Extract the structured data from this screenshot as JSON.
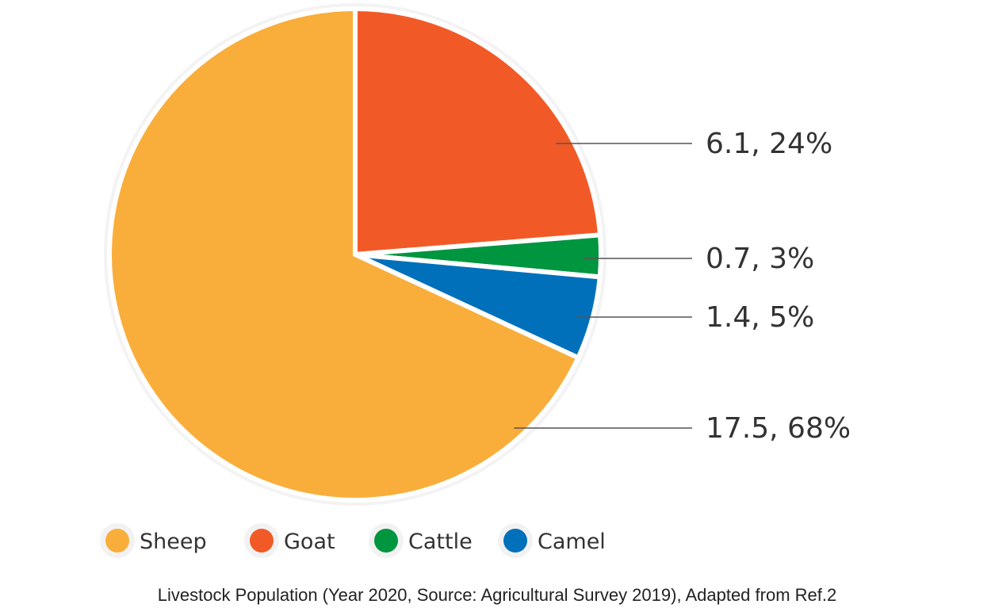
{
  "chart_data": {
    "type": "pie",
    "caption": "Livestock Population (Year 2020, Source: Agricultural Survey 2019), Adapted from Ref.2",
    "slices": [
      {
        "name": "Goat",
        "value": 6.1,
        "percent": 24,
        "label": "6.1, 24%",
        "color": "#f15a27"
      },
      {
        "name": "Cattle",
        "value": 0.7,
        "percent": 3,
        "label": "0.7, 3%",
        "color": "#00953f"
      },
      {
        "name": "Camel",
        "value": 1.4,
        "percent": 5,
        "label": "1.4, 5%",
        "color": "#0070bb"
      },
      {
        "name": "Sheep",
        "value": 17.5,
        "percent": 68,
        "label": "17.5, 68%",
        "color": "#f9ae3b"
      }
    ],
    "legend": {
      "placement": "bottom",
      "entries": [
        {
          "name": "Sheep",
          "color": "#f9ae3b"
        },
        {
          "name": "Goat",
          "color": "#f15a27"
        },
        {
          "name": "Cattle",
          "color": "#00953f"
        },
        {
          "name": "Camel",
          "color": "#0070bb"
        }
      ]
    }
  }
}
